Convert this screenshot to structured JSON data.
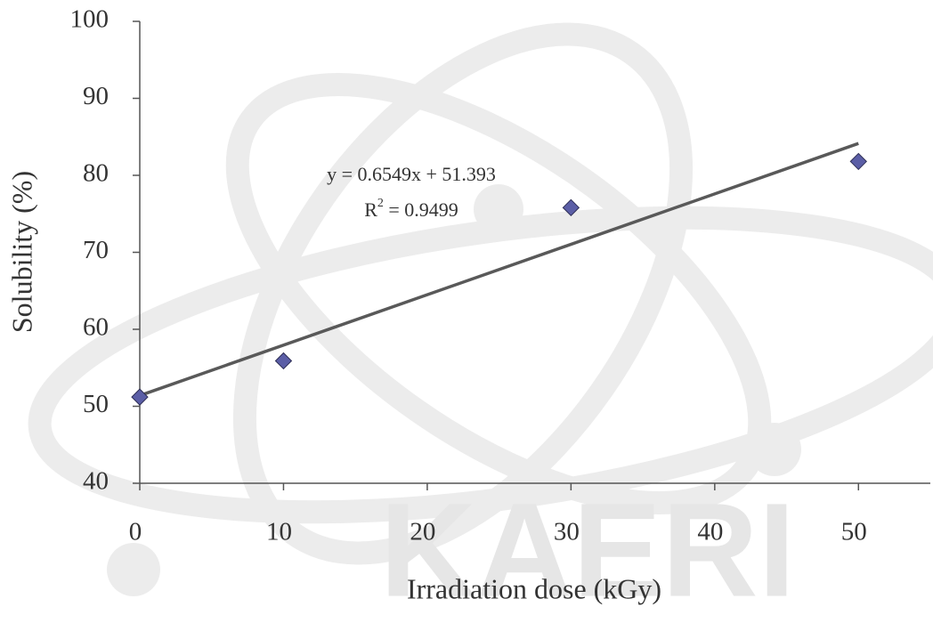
{
  "chart_data": {
    "type": "scatter",
    "x_label": "Irradiation dose (kGy)",
    "y_label": "Solubility (%)",
    "x": [
      0,
      10,
      30,
      50
    ],
    "series": [
      {
        "color": "#5b5ea6",
        "values": [
          51.2,
          55.9,
          75.8,
          81.8
        ]
      }
    ],
    "trendline": {
      "color": "#595959",
      "x": [
        0,
        50
      ],
      "y": [
        51.393,
        84.138
      ]
    },
    "equation": "y = 0.6549x + 51.393",
    "r2_label": {
      "base": "R",
      "sup": "2",
      "rest": " = 0.9499"
    },
    "watermark": "KAERI",
    "xlim": [
      0,
      55
    ],
    "xticks": [
      0,
      10,
      20,
      30,
      40,
      50
    ],
    "ylim": [
      40,
      100
    ],
    "yticks": [
      40,
      50,
      60,
      70,
      80,
      90,
      100
    ],
    "grid": false
  }
}
